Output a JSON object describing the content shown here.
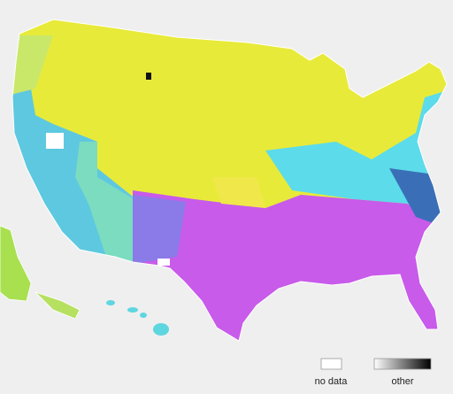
{
  "legend": {
    "no_data": "no data",
    "other": "other"
  }
}
